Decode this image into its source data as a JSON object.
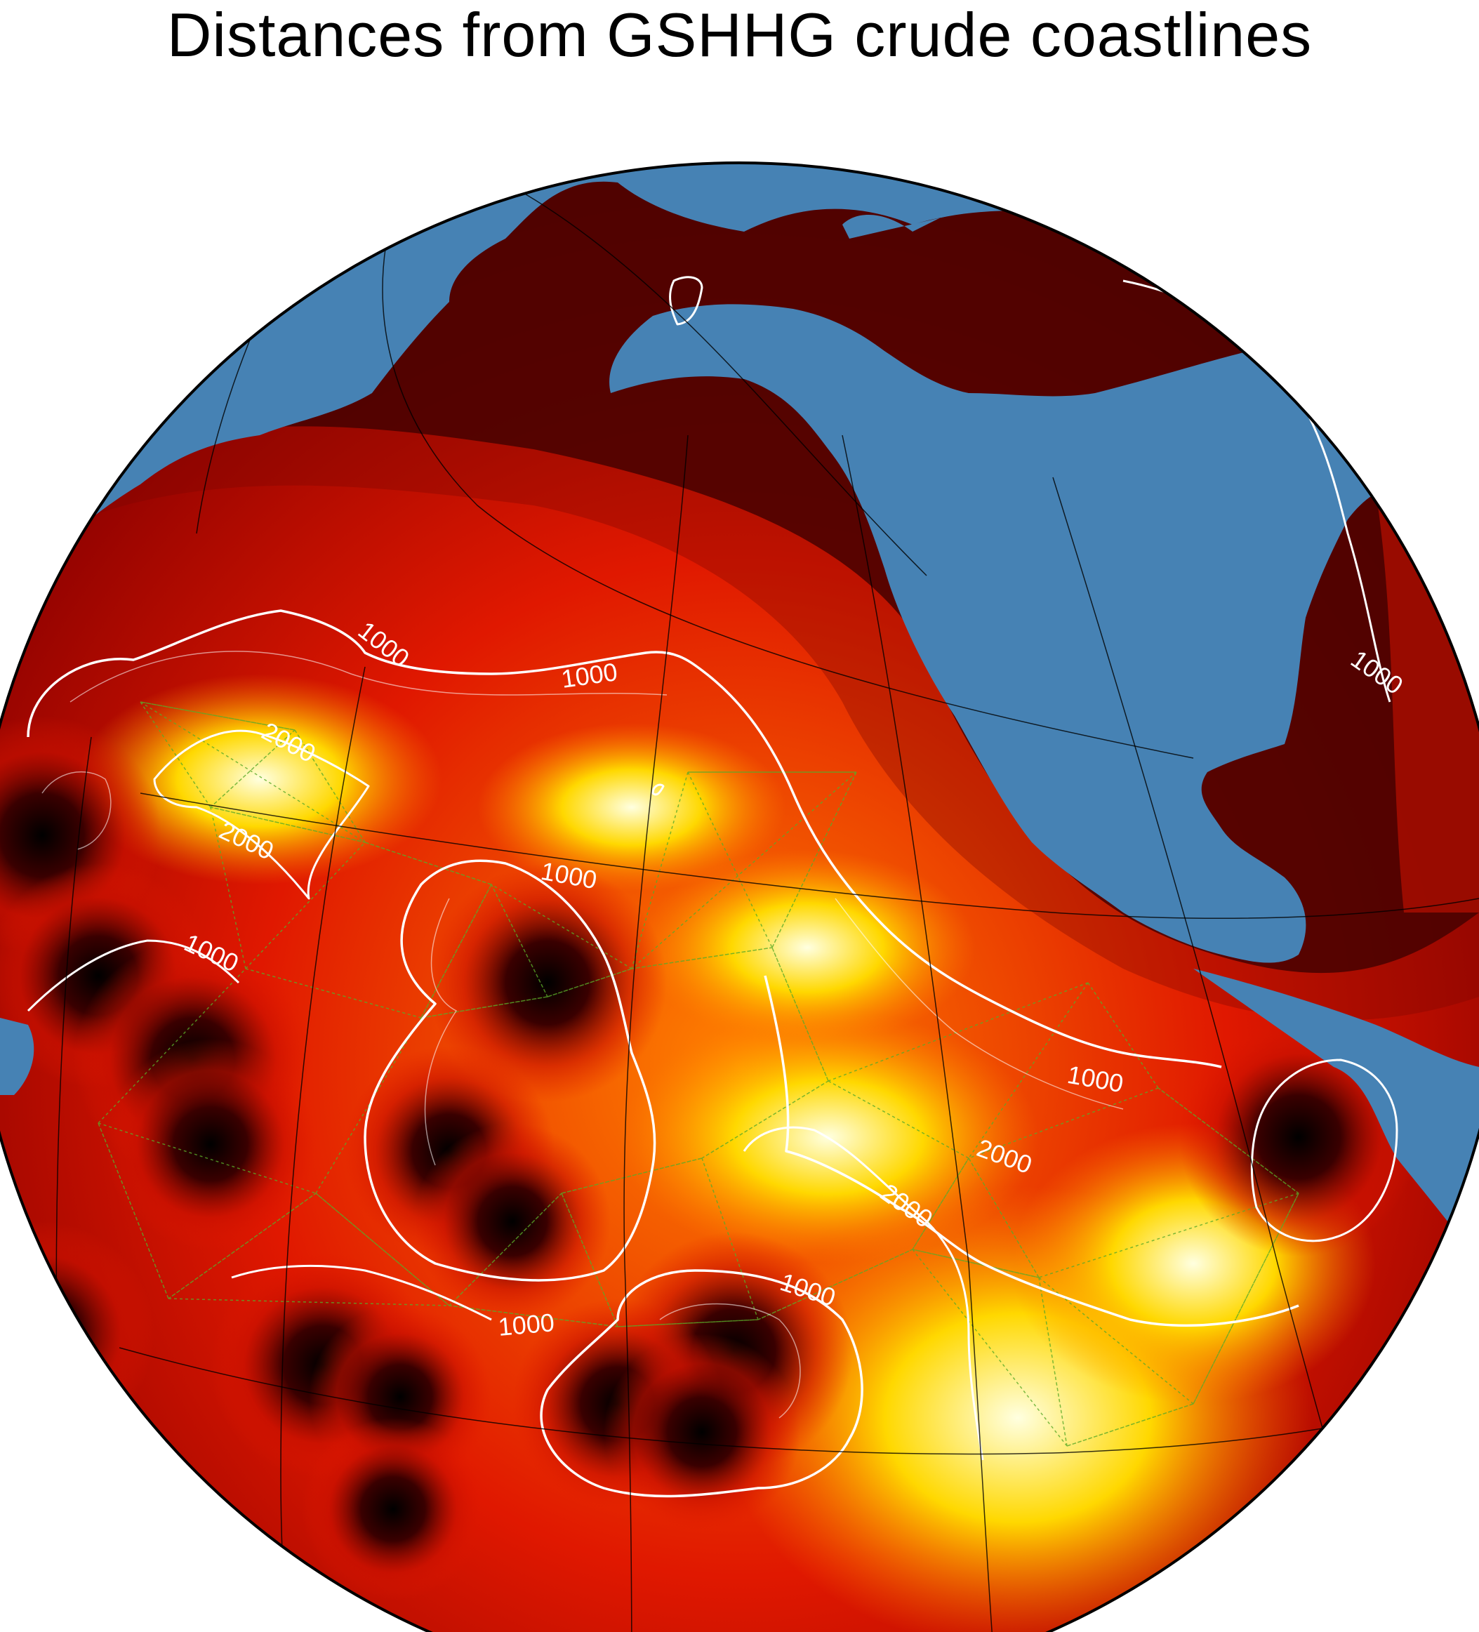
{
  "title": "Distances from GSHHG crude coastlines",
  "colors": {
    "ocean_far": "#ffffe0",
    "ocean_mid": "#ffd800",
    "ocean_orange": "#ff8200",
    "ocean_red": "#e01800",
    "ocean_near": "#000000",
    "land": "#4682b4",
    "contour": "#ffffff",
    "graticule": "#000000",
    "triangulation": "#5aaa28"
  },
  "contours": {
    "major_interval": 1000,
    "labels": [
      {
        "text": "1000"
      },
      {
        "text": "1000"
      },
      {
        "text": "1000"
      },
      {
        "text": "1000"
      },
      {
        "text": "1000"
      },
      {
        "text": "1000"
      },
      {
        "text": "1000"
      },
      {
        "text": "1000"
      },
      {
        "text": "2000"
      },
      {
        "text": "2000"
      },
      {
        "text": "2000"
      },
      {
        "text": "2000"
      }
    ]
  }
}
